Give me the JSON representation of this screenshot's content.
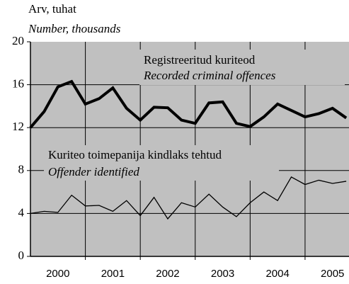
{
  "chart_data": {
    "type": "line",
    "y_label": "Arv, tuhat",
    "y_label_en": "Number, thousands",
    "x": [
      2000,
      2000.25,
      2000.5,
      2000.75,
      2001,
      2001.25,
      2001.5,
      2001.75,
      2002,
      2002.25,
      2002.5,
      2002.75,
      2003,
      2003.25,
      2003.5,
      2003.75,
      2004,
      2004.25,
      2004.5,
      2004.75,
      2005,
      2005.25,
      2005.5,
      2005.75
    ],
    "series": [
      {
        "name": "Registreeritud kuriteod",
        "name_en": "Recorded criminal offences",
        "color": "#000000",
        "width": 4,
        "values": [
          12.0,
          13.5,
          15.8,
          16.3,
          14.2,
          14.7,
          15.7,
          13.8,
          12.7,
          13.9,
          13.85,
          12.7,
          12.4,
          14.3,
          14.4,
          12.4,
          12.1,
          13.0,
          14.2,
          13.6,
          13.0,
          13.3,
          13.8,
          12.9
        ]
      },
      {
        "name": "Kuriteo toimepanija kindlaks tehtud",
        "name_en": "Offender identified",
        "color": "#000000",
        "width": 1.3,
        "values": [
          4.0,
          4.2,
          4.1,
          5.7,
          4.7,
          4.75,
          4.2,
          5.2,
          3.8,
          5.5,
          3.5,
          5.0,
          4.6,
          5.8,
          4.6,
          3.7,
          5.0,
          6.0,
          5.2,
          7.4,
          6.7,
          7.1,
          6.8,
          7.0
        ]
      }
    ],
    "xlim": [
      2000,
      2005.8
    ],
    "xticks": [
      {
        "value": 2000.5,
        "label": "2000"
      },
      {
        "value": 2001.5,
        "label": "2001"
      },
      {
        "value": 2002.5,
        "label": "2002"
      },
      {
        "value": 2003.5,
        "label": "2003"
      },
      {
        "value": 2004.5,
        "label": "2004"
      },
      {
        "value": 2005.5,
        "label": "2005"
      }
    ],
    "xgrid": [
      2001,
      2002,
      2003,
      2004,
      2005
    ],
    "ylim": [
      0,
      20
    ],
    "yticks": [
      0,
      4,
      8,
      12,
      16,
      20
    ],
    "grid": true,
    "background": "#c0c0c0"
  }
}
